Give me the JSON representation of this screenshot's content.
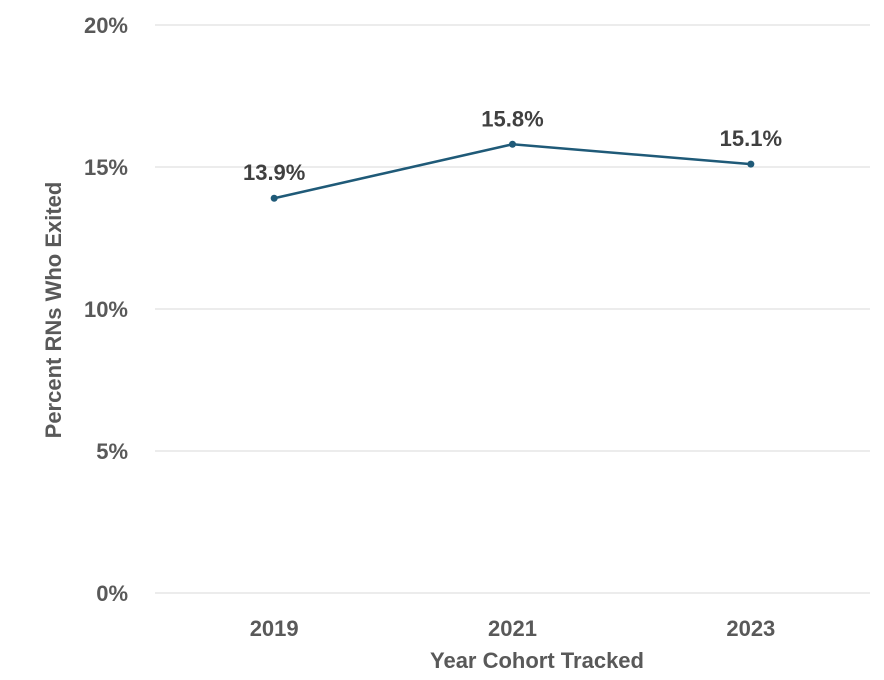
{
  "chart_data": {
    "type": "line",
    "title": "",
    "xlabel": "Year Cohort Tracked",
    "ylabel": "Percent RNs Who Exited",
    "categories": [
      "2019",
      "2021",
      "2023"
    ],
    "series": [
      {
        "values": [
          13.9,
          15.8,
          15.1
        ],
        "color": "#1f5a78"
      }
    ],
    "data_labels": [
      "13.9%",
      "15.8%",
      "15.1%"
    ],
    "ylim": [
      0,
      20
    ],
    "y_ticks": [
      0,
      5,
      10,
      15,
      20
    ],
    "y_tick_labels": [
      "0%",
      "5%",
      "10%",
      "15%",
      "20%"
    ],
    "grid": true,
    "legend": "none"
  }
}
